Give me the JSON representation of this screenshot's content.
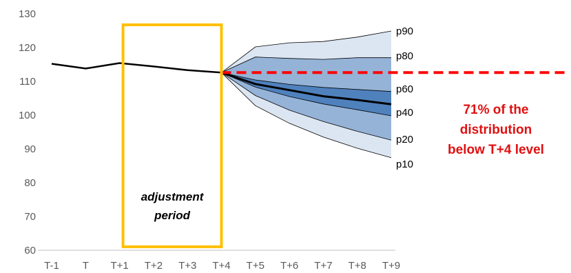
{
  "chart_data": {
    "type": "line",
    "title": "",
    "xlabel": "",
    "ylabel": "",
    "categories": [
      "T-1",
      "T",
      "T+1",
      "T+2",
      "T+3",
      "T+4",
      "T+5",
      "T+6",
      "T+7",
      "T+8",
      "T+9"
    ],
    "ylim": [
      60,
      130
    ],
    "yticks": [
      60,
      70,
      80,
      90,
      100,
      110,
      120,
      130
    ],
    "grid": false,
    "history": {
      "values": [
        115.2,
        113.8,
        115.4,
        114.4,
        113.3,
        112.6
      ],
      "color": "#000000"
    },
    "fan": {
      "start": "T+4",
      "x": [
        "T+4",
        "T+5",
        "T+6",
        "T+7",
        "T+8",
        "T+9"
      ],
      "percentiles": [
        {
          "label": "p10",
          "values": [
            112.6,
            102.8,
            97.6,
            93.5,
            90.2,
            87.4
          ]
        },
        {
          "label": "p20",
          "values": [
            112.6,
            105.8,
            101.5,
            98.1,
            95.2,
            92.6
          ]
        },
        {
          "label": "p40",
          "values": [
            112.6,
            108.3,
            105.5,
            103.3,
            101.6,
            99.8
          ]
        },
        {
          "label": "p60",
          "values": [
            112.6,
            110.4,
            109.1,
            108.2,
            107.6,
            107.0
          ]
        },
        {
          "label": "p80",
          "values": [
            112.6,
            117.2,
            116.8,
            116.5,
            117.0,
            117.0
          ]
        },
        {
          "label": "p90",
          "values": [
            112.6,
            120.2,
            121.4,
            121.8,
            123.1,
            124.9
          ]
        }
      ],
      "central_line": [
        112.6,
        109.2,
        107.4,
        105.6,
        104.5,
        103.2
      ],
      "colors": {
        "outer": "#dce6f2",
        "middle": "#95b3d7",
        "inner": "#4f81bd",
        "edge": "#000000"
      }
    },
    "reference_line": {
      "value": 112.6,
      "color": "#ff0000",
      "style": "dashed"
    },
    "highlight_box": {
      "from": "T+1",
      "to": "T+4",
      "color": "#ffc000",
      "label_lines": [
        "adjustment",
        "period"
      ]
    },
    "annotation": {
      "lines": [
        "71% of the",
        "distribution",
        "below T+4 level"
      ],
      "color": "#e01010"
    }
  }
}
